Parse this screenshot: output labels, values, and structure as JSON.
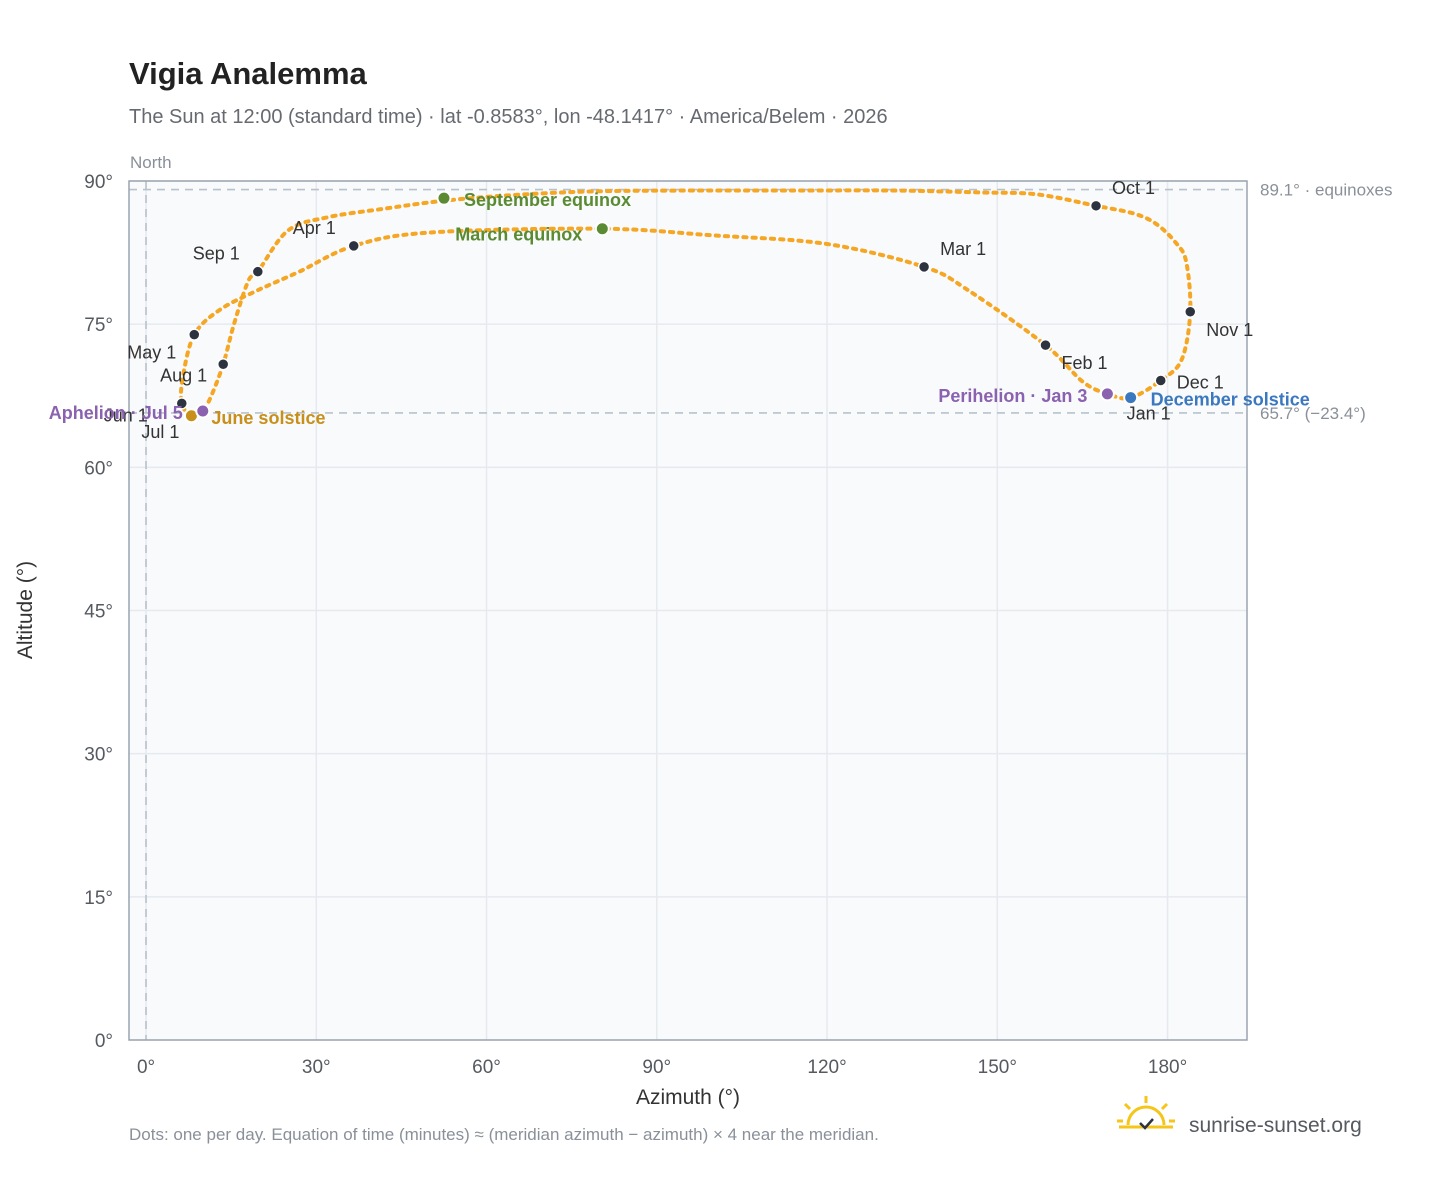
{
  "title": "Vigia Analemma",
  "subtitle": "The Sun at 12:00 (standard time) · lat -0.8583°, lon -48.1417° · America/Belem · 2026",
  "north_label": "North",
  "footnote": "Dots: one per day. Equation of time (minutes) ≈ (meridian azimuth − azimuth) × 4 near the meridian.",
  "brand": {
    "name": "sunrise-sunset.org",
    "icon": "sun-logo-icon"
  },
  "colors": {
    "curve": "#f5a623",
    "month_marker": "#2d3440",
    "equinox": "#5a8a32",
    "june_solstice": "#c8901a",
    "december_solstice": "#3b78c0",
    "perihelion_aphelion": "#8a62b0",
    "reference_line": "#b8c2cc",
    "plot_background": "#f8fafc",
    "grid": "#e6eaee"
  },
  "chart_data": {
    "type": "scatter",
    "xlabel": "Azimuth (°)",
    "ylabel": "Altitude (°)",
    "xlim": [
      -3,
      194
    ],
    "ylim": [
      0,
      90
    ],
    "x_ticks": [
      0,
      30,
      60,
      90,
      120,
      150,
      180
    ],
    "y_ticks": [
      0,
      15,
      30,
      45,
      60,
      75,
      90
    ],
    "x_tick_labels": [
      "0°",
      "30°",
      "60°",
      "90°",
      "120°",
      "150°",
      "180°"
    ],
    "y_tick_labels": [
      "0°",
      "15°",
      "30°",
      "45°",
      "60°",
      "75°",
      "90°"
    ],
    "grid": true,
    "reference_lines": [
      {
        "axis": "y",
        "value": 89.1,
        "label": "89.1° · equinoxes"
      },
      {
        "axis": "y",
        "value": 65.7,
        "label": "65.7° (−23.4°)"
      },
      {
        "axis": "x",
        "value": 0,
        "label": "North"
      }
    ],
    "analemma_path": [
      [
        173.5,
        67.3
      ],
      [
        178.8,
        69.1
      ],
      [
        182.5,
        71.3
      ],
      [
        184.0,
        76.3
      ],
      [
        183.3,
        81.5
      ],
      [
        181.5,
        83.5
      ],
      [
        178.0,
        85.5
      ],
      [
        174.0,
        86.6
      ],
      [
        167.4,
        87.4
      ],
      [
        157.0,
        88.6
      ],
      [
        147.0,
        88.8
      ],
      [
        132.0,
        89.0
      ],
      [
        113.0,
        89.0
      ],
      [
        94.0,
        89.0
      ],
      [
        78.0,
        88.9
      ],
      [
        64.0,
        88.5
      ],
      [
        52.0,
        87.9
      ],
      [
        42.0,
        87.1
      ],
      [
        32.0,
        86.2
      ],
      [
        25.0,
        84.8
      ],
      [
        19.7,
        80.5
      ],
      [
        18.0,
        79.5
      ],
      [
        15.5,
        75.0
      ],
      [
        13.6,
        70.8
      ],
      [
        11.5,
        67.5
      ],
      [
        10.0,
        65.9
      ],
      [
        8.0,
        65.4
      ],
      [
        6.3,
        66.7
      ],
      [
        6.5,
        69.5
      ],
      [
        8.5,
        73.9
      ],
      [
        13.0,
        76.5
      ],
      [
        19.5,
        78.5
      ],
      [
        27.0,
        80.5
      ],
      [
        36.6,
        83.2
      ],
      [
        50.0,
        84.6
      ],
      [
        80.4,
        85.0
      ],
      [
        100.0,
        84.3
      ],
      [
        120.0,
        83.4
      ],
      [
        137.1,
        81.0
      ],
      [
        145.0,
        78.5
      ],
      [
        158.5,
        72.8
      ],
      [
        165.0,
        69.0
      ],
      [
        169.4,
        67.7
      ],
      [
        173.5,
        67.3
      ]
    ],
    "months": [
      {
        "label": "Jan 1",
        "az": 173.5,
        "alt": 67.3
      },
      {
        "label": "Feb 1",
        "az": 158.5,
        "alt": 72.8
      },
      {
        "label": "Mar 1",
        "az": 137.1,
        "alt": 81.0
      },
      {
        "label": "Apr 1",
        "az": 36.6,
        "alt": 83.2
      },
      {
        "label": "May 1",
        "az": 8.5,
        "alt": 73.9
      },
      {
        "label": "Jun 1",
        "az": 6.3,
        "alt": 66.7
      },
      {
        "label": "Jul 1",
        "az": 8.0,
        "alt": 65.4
      },
      {
        "label": "Aug 1",
        "az": 13.6,
        "alt": 70.8
      },
      {
        "label": "Sep 1",
        "az": 19.7,
        "alt": 80.5
      },
      {
        "label": "Oct 1",
        "az": 167.4,
        "alt": 87.4
      },
      {
        "label": "Nov 1",
        "az": 184.0,
        "alt": 76.3
      },
      {
        "label": "Dec 1",
        "az": 178.8,
        "alt": 69.1
      }
    ],
    "events": [
      {
        "label": "September equinox",
        "az": 52.5,
        "alt": 88.2,
        "kind": "equinox"
      },
      {
        "label": "March equinox",
        "az": 80.4,
        "alt": 85.0,
        "kind": "equinox"
      },
      {
        "label": "June solstice",
        "az": 8.0,
        "alt": 65.4,
        "kind": "june_solstice"
      },
      {
        "label": "December solstice",
        "az": 173.5,
        "alt": 67.3,
        "kind": "december_solstice"
      },
      {
        "label": "Perihelion · Jan 3",
        "az": 169.4,
        "alt": 67.7,
        "kind": "perihelion_aphelion"
      },
      {
        "label": "Aphelion · Jul 5",
        "az": 10.0,
        "alt": 65.9,
        "kind": "perihelion_aphelion"
      }
    ]
  }
}
